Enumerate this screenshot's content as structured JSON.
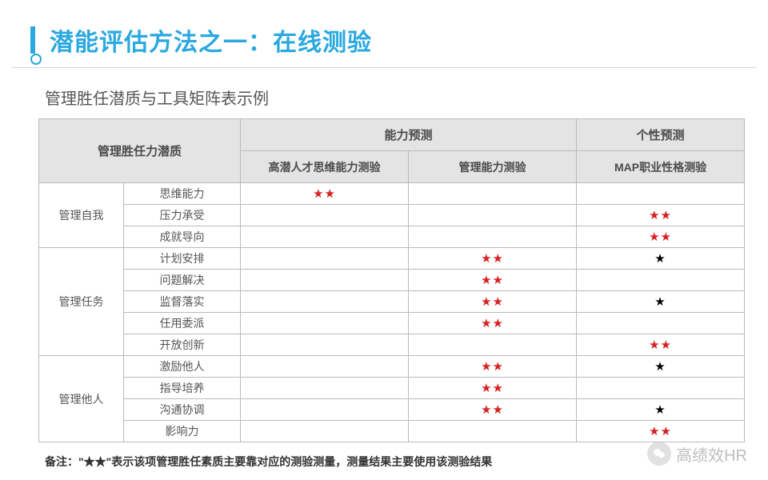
{
  "title": "潜能评估方法之一：在线测验",
  "subtitle": "管理胜任潜质与工具矩阵表示例",
  "colors": {
    "accent": "#2aa8e0",
    "header_bg": "#e4e4e4",
    "border": "#bababa",
    "star_primary": "#d82020",
    "star_secondary": "#000000",
    "text": "#555555"
  },
  "table": {
    "corner_header": "管理胜任力潜质",
    "top_groups": [
      "能力预测",
      "个性预测"
    ],
    "tests": [
      "高潜人才思维能力测验",
      "管理能力测验",
      "MAP职业性格测验"
    ],
    "star_glyph": "★★",
    "groups": [
      {
        "name": "管理自我",
        "rows": [
          {
            "label": "思维能力",
            "cells": [
              "red",
              "",
              ""
            ]
          },
          {
            "label": "压力承受",
            "cells": [
              "",
              "",
              "red"
            ]
          },
          {
            "label": "成就导向",
            "cells": [
              "",
              "",
              "red"
            ]
          }
        ]
      },
      {
        "name": "管理任务",
        "rows": [
          {
            "label": "计划安排",
            "cells": [
              "",
              "red",
              "black"
            ]
          },
          {
            "label": "问题解决",
            "cells": [
              "",
              "red",
              ""
            ]
          },
          {
            "label": "监督落实",
            "cells": [
              "",
              "red",
              "black"
            ]
          },
          {
            "label": "任用委派",
            "cells": [
              "",
              "red",
              ""
            ]
          },
          {
            "label": "开放创新",
            "cells": [
              "",
              "",
              "red"
            ]
          }
        ]
      },
      {
        "name": "管理他人",
        "rows": [
          {
            "label": "激励他人",
            "cells": [
              "",
              "red",
              "black"
            ]
          },
          {
            "label": "指导培养",
            "cells": [
              "",
              "red",
              ""
            ]
          },
          {
            "label": "沟通协调",
            "cells": [
              "",
              "red",
              "black"
            ]
          },
          {
            "label": "影响力",
            "cells": [
              "",
              "",
              "red"
            ]
          }
        ]
      }
    ]
  },
  "footnote": "备注：\"★★\"表示该项管理胜任素质主要靠对应的测验测量，测量结果主要使用该测验结果",
  "watermark": "高绩效HR"
}
